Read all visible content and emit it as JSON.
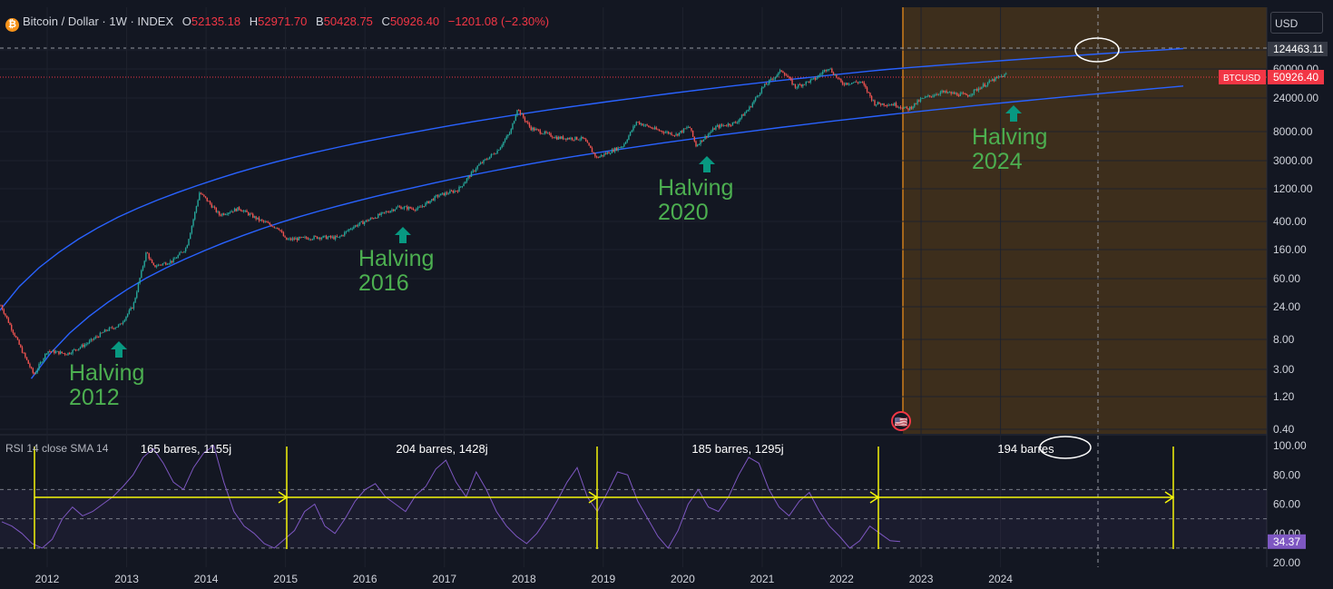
{
  "header": {
    "logo_glyph": "₿",
    "symbol": "Bitcoin / Dollar · 1W · INDEX",
    "o_label": "O",
    "o_value": "52135.18",
    "h_label": "H",
    "h_value": "52971.70",
    "b_label": "B",
    "b_value": "50428.75",
    "c_label": "C",
    "c_value": "50926.40",
    "change": "−1201.08 (−2.30%)"
  },
  "currency": "USD",
  "price_tag": {
    "symbol": "BTCUSD",
    "value": "50926.40"
  },
  "crosshair_price": "124463.11",
  "rsi": {
    "title": "RSI 14 close SMA 14",
    "last_value": "34.37",
    "axis_labels": [
      "100.00",
      "80.00",
      "60.00",
      "40.00",
      "20.00"
    ]
  },
  "colors": {
    "background": "#131722",
    "up": "#26a69a",
    "down": "#ef5350",
    "channel": "#2962ff",
    "halving_text": "#4caf50",
    "halving_arrow": "#089981",
    "future_zone": "#3d2e1c",
    "rsi_line": "#7e57c2",
    "measure": "#f5f50a"
  },
  "chart_data": [
    {
      "type": "line",
      "title": "Bitcoin / Dollar · 1W · INDEX",
      "scale": "log",
      "y_axis_labels": [
        "124463.11",
        "60000.00",
        "24000.00",
        "8000.00",
        "3000.00",
        "1200.00",
        "400.00",
        "160.00",
        "60.00",
        "24.00",
        "8.00",
        "3.00",
        "1.20",
        "0.40"
      ],
      "x_axis_labels": [
        "2012",
        "2013",
        "2014",
        "2015",
        "2016",
        "2017",
        "2018",
        "2019",
        "2020",
        "2021",
        "2022",
        "2023",
        "2024"
      ],
      "series": [
        {
          "name": "BTCUSD",
          "points": [
            [
              "2011-06",
              25
            ],
            [
              "2011-09",
              6
            ],
            [
              "2011-11",
              2.5
            ],
            [
              "2012-01",
              5.5
            ],
            [
              "2012-04",
              5
            ],
            [
              "2012-07",
              7
            ],
            [
              "2012-10",
              11
            ],
            [
              "2012-12",
              13
            ],
            [
              "2013-02",
              25
            ],
            [
              "2013-04",
              150
            ],
            [
              "2013-05",
              90
            ],
            [
              "2013-08",
              110
            ],
            [
              "2013-10",
              170
            ],
            [
              "2013-11",
              400
            ],
            [
              "2013-12",
              1050
            ],
            [
              "2014-01",
              850
            ],
            [
              "2014-03",
              500
            ],
            [
              "2014-06",
              620
            ],
            [
              "2014-09",
              420
            ],
            [
              "2014-12",
              320
            ],
            [
              "2015-01",
              220
            ],
            [
              "2015-06",
              240
            ],
            [
              "2015-09",
              235
            ],
            [
              "2015-11",
              330
            ],
            [
              "2016-01",
              400
            ],
            [
              "2016-06",
              650
            ],
            [
              "2016-09",
              610
            ],
            [
              "2016-12",
              950
            ],
            [
              "2017-03",
              1150
            ],
            [
              "2017-06",
              2500
            ],
            [
              "2017-09",
              4200
            ],
            [
              "2017-11",
              8000
            ],
            [
              "2017-12",
              17000
            ],
            [
              "2018-02",
              9000
            ],
            [
              "2018-06",
              6500
            ],
            [
              "2018-10",
              6300
            ],
            [
              "2018-12",
              3300
            ],
            [
              "2019-04",
              5000
            ],
            [
              "2019-06",
              11000
            ],
            [
              "2019-09",
              8500
            ],
            [
              "2019-12",
              7200
            ],
            [
              "2020-02",
              9500
            ],
            [
              "2020-03",
              5000
            ],
            [
              "2020-06",
              9300
            ],
            [
              "2020-09",
              10700
            ],
            [
              "2020-11",
              17000
            ],
            [
              "2021-01",
              33000
            ],
            [
              "2021-04",
              58000
            ],
            [
              "2021-06",
              34000
            ],
            [
              "2021-09",
              44000
            ],
            [
              "2021-11",
              64000
            ],
            [
              "2022-01",
              38000
            ],
            [
              "2022-04",
              40000
            ],
            [
              "2022-06",
              20000
            ],
            [
              "2022-09",
              19500
            ],
            [
              "2022-11",
              16500
            ],
            [
              "2023-01",
              23000
            ],
            [
              "2023-04",
              29000
            ],
            [
              "2023-08",
              26000
            ],
            [
              "2023-10",
              34000
            ],
            [
              "2023-12",
              43000
            ],
            [
              "2024-02",
              50926.4
            ]
          ]
        }
      ],
      "annotations": [
        {
          "lines": [
            "Halving",
            "2012"
          ]
        },
        {
          "lines": [
            "Halving",
            "2016"
          ]
        },
        {
          "lines": [
            "Halving",
            "2020"
          ]
        },
        {
          "lines": [
            "Halving",
            "2024"
          ]
        }
      ]
    },
    {
      "type": "line",
      "title": "RSI 14 close SMA 14",
      "ylim": [
        20,
        100
      ],
      "bands": [
        30,
        50,
        70
      ],
      "series": [
        {
          "name": "RSI",
          "values": [
            48,
            45,
            40,
            33,
            30,
            36,
            50,
            58,
            52,
            55,
            60,
            65,
            72,
            80,
            92,
            98,
            88,
            75,
            70,
            85,
            95,
            100,
            75,
            55,
            45,
            40,
            33,
            30,
            36,
            42,
            55,
            60,
            45,
            40,
            50,
            62,
            70,
            74,
            65,
            60,
            55,
            66,
            72,
            84,
            90,
            75,
            65,
            82,
            70,
            55,
            45,
            38,
            33,
            40,
            50,
            62,
            75,
            85,
            65,
            55,
            68,
            82,
            80,
            62,
            50,
            38,
            30,
            42,
            60,
            70,
            58,
            55,
            65,
            80,
            92,
            88,
            70,
            58,
            52,
            62,
            68,
            55,
            45,
            38,
            30,
            35,
            45,
            40,
            35,
            34.37
          ]
        }
      ]
    }
  ],
  "measurements": [
    {
      "label": "165 barres, 1155j"
    },
    {
      "label": "204 barres, 1428j"
    },
    {
      "label": "185 barres, 1295j"
    },
    {
      "label": "194 barres"
    }
  ],
  "event_flag_glyph": "🇺🇸"
}
